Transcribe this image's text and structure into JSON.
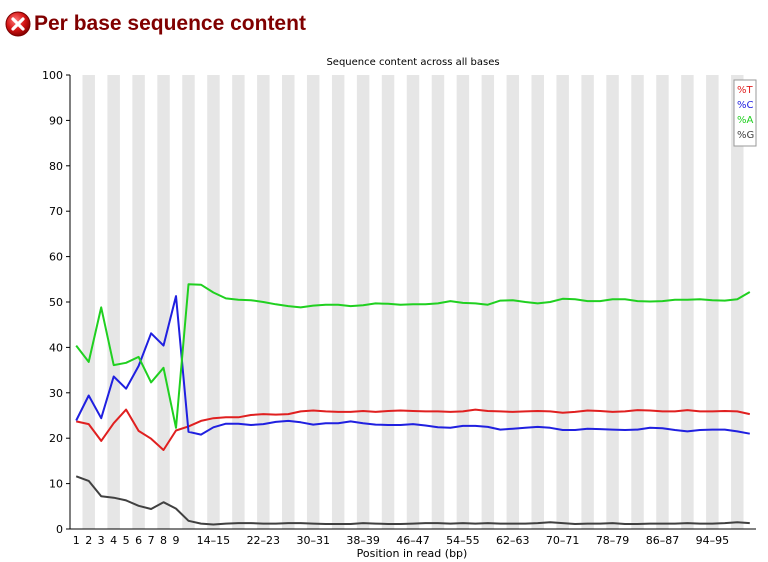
{
  "header": {
    "title": "Per base sequence content",
    "status_icon": "fail-icon",
    "status_color": "#cc0000"
  },
  "chart_data": {
    "type": "line",
    "title": "Sequence content across all bases",
    "xlabel": "Position in read (bp)",
    "ylabel": "",
    "ylim": [
      0,
      100
    ],
    "yticks": [
      0,
      10,
      20,
      30,
      40,
      50,
      60,
      70,
      80,
      90,
      100
    ],
    "grid": "alternating vertical bands",
    "legend_position": "top-right",
    "categories": [
      "1",
      "2",
      "3",
      "4",
      "5",
      "6",
      "7",
      "8",
      "9",
      "10-11",
      "12-13",
      "14-15",
      "16-17",
      "18-19",
      "20-21",
      "22-23",
      "24-25",
      "26-27",
      "28-29",
      "30-31",
      "32-33",
      "34-35",
      "36-37",
      "38-39",
      "40-41",
      "42-43",
      "44-45",
      "46-47",
      "48-49",
      "50-51",
      "52-53",
      "54-55",
      "56-57",
      "58-59",
      "60-61",
      "62-63",
      "64-65",
      "66-67",
      "68-69",
      "70-71",
      "72-73",
      "74-75",
      "76-77",
      "78-79",
      "80-81",
      "82-83",
      "84-85",
      "86-87",
      "88-89",
      "90-91",
      "92-93",
      "94-95",
      "96-97",
      "98-99",
      "100-101"
    ],
    "category_labels": [
      "1",
      "2",
      "3",
      "4",
      "5",
      "6",
      "7",
      "8",
      "9",
      "",
      "",
      "14–15",
      "",
      "",
      "",
      "22–23",
      "",
      "",
      "",
      "30–31",
      "",
      "",
      "",
      "38–39",
      "",
      "",
      "",
      "46–47",
      "",
      "",
      "",
      "54–55",
      "",
      "",
      "",
      "62–63",
      "",
      "",
      "",
      "70–71",
      "",
      "",
      "",
      "78–79",
      "",
      "",
      "",
      "86–87",
      "",
      "",
      "",
      "94–95",
      "",
      "",
      "",
      ""
    ],
    "series": [
      {
        "name": "%T",
        "color": "#e02020",
        "values": [
          23.7,
          23.1,
          19.4,
          23.3,
          26.3,
          21.6,
          19.9,
          17.4,
          21.7,
          22.6,
          23.8,
          24.4,
          24.6,
          24.6,
          25.1,
          25.3,
          25.2,
          25.3,
          25.9,
          26.1,
          25.9,
          25.8,
          25.8,
          26.0,
          25.8,
          26.0,
          26.1,
          26.0,
          25.9,
          25.9,
          25.8,
          25.9,
          26.3,
          26.0,
          25.9,
          25.8,
          25.9,
          26.0,
          25.9,
          25.6,
          25.8,
          26.1,
          26.0,
          25.8,
          25.9,
          26.2,
          26.1,
          25.9,
          25.9,
          26.2,
          25.9,
          25.9,
          26.0,
          25.9,
          25.3
        ]
      },
      {
        "name": "%C",
        "color": "#2020e0",
        "values": [
          23.9,
          29.4,
          24.4,
          33.6,
          30.9,
          35.9,
          43.1,
          40.4,
          51.3,
          21.4,
          20.8,
          22.4,
          23.2,
          23.2,
          22.9,
          23.1,
          23.6,
          23.8,
          23.5,
          23.0,
          23.3,
          23.3,
          23.7,
          23.3,
          23.0,
          22.9,
          22.9,
          23.1,
          22.8,
          22.4,
          22.3,
          22.7,
          22.7,
          22.5,
          21.9,
          22.1,
          22.3,
          22.5,
          22.3,
          21.8,
          21.8,
          22.1,
          22.0,
          21.9,
          21.8,
          21.9,
          22.3,
          22.2,
          21.8,
          21.5,
          21.8,
          21.9,
          21.9,
          21.5,
          21.0
        ]
      },
      {
        "name": "%A",
        "color": "#20d020",
        "values": [
          40.4,
          36.8,
          48.8,
          36.1,
          36.6,
          37.9,
          32.3,
          35.5,
          22.3,
          53.9,
          53.8,
          52.1,
          50.8,
          50.5,
          50.4,
          50.0,
          49.5,
          49.1,
          48.8,
          49.2,
          49.4,
          49.4,
          49.1,
          49.3,
          49.7,
          49.6,
          49.4,
          49.5,
          49.5,
          49.7,
          50.2,
          49.8,
          49.7,
          49.4,
          50.3,
          50.4,
          50.0,
          49.7,
          50.0,
          50.7,
          50.6,
          50.2,
          50.2,
          50.6,
          50.6,
          50.2,
          50.1,
          50.2,
          50.5,
          50.5,
          50.6,
          50.4,
          50.3,
          50.6,
          52.2
        ]
      },
      {
        "name": "%G",
        "color": "#404040",
        "values": [
          11.6,
          10.6,
          7.2,
          6.9,
          6.3,
          5.1,
          4.4,
          5.9,
          4.5,
          1.8,
          1.2,
          1.0,
          1.2,
          1.3,
          1.3,
          1.2,
          1.2,
          1.3,
          1.3,
          1.2,
          1.1,
          1.1,
          1.1,
          1.3,
          1.2,
          1.1,
          1.1,
          1.2,
          1.3,
          1.3,
          1.2,
          1.3,
          1.2,
          1.3,
          1.2,
          1.2,
          1.2,
          1.3,
          1.5,
          1.3,
          1.1,
          1.2,
          1.2,
          1.3,
          1.1,
          1.1,
          1.2,
          1.2,
          1.2,
          1.3,
          1.2,
          1.2,
          1.3,
          1.5,
          1.3
        ]
      }
    ]
  }
}
